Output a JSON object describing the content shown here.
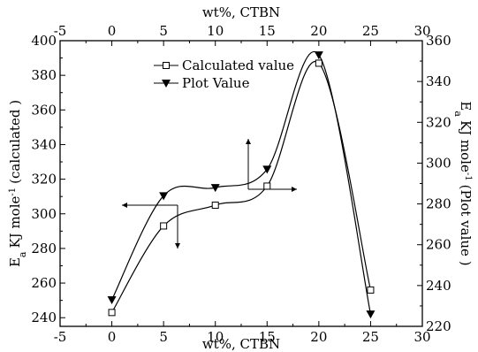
{
  "chart_data": {
    "type": "line",
    "x_top_label": "wt%, CTBN",
    "x_bottom_label": "wt%, CTBN",
    "y_left_label_main": "E",
    "y_left_label_sub": "a",
    "y_left_label_rest": "KJ mole",
    "y_left_label_sup": "-1",
    "y_left_label_tail": "(calculated )",
    "y_right_label_main": "E",
    "y_right_label_sub": "a",
    "y_right_label_rest": "KJ mole",
    "y_right_label_sup": "-1",
    "y_right_label_tail": "(Plot value )",
    "xlim": [
      -5,
      30
    ],
    "ylim_left": [
      235,
      400
    ],
    "ylim_right": [
      220,
      360
    ],
    "x_ticks": [
      "-5",
      "0",
      "5",
      "10",
      "15",
      "20",
      "25",
      "30"
    ],
    "y_left_ticks": [
      "240",
      "260",
      "280",
      "300",
      "320",
      "340",
      "360",
      "380",
      "400"
    ],
    "y_right_ticks": [
      "220",
      "240",
      "260",
      "280",
      "300",
      "320",
      "340",
      "360"
    ],
    "series": [
      {
        "name": "Calculated value",
        "axis": "left",
        "marker": "square",
        "x": [
          0,
          5,
          10,
          15,
          20,
          25
        ],
        "values": [
          243,
          293,
          305,
          316,
          387,
          256
        ]
      },
      {
        "name": "Plot Value",
        "axis": "right",
        "marker": "triangle-down",
        "x": [
          0,
          5,
          10,
          15,
          20,
          25
        ],
        "values": [
          233,
          284,
          288,
          297,
          353,
          226
        ]
      }
    ],
    "legend_position": "top-center",
    "grid": false
  }
}
